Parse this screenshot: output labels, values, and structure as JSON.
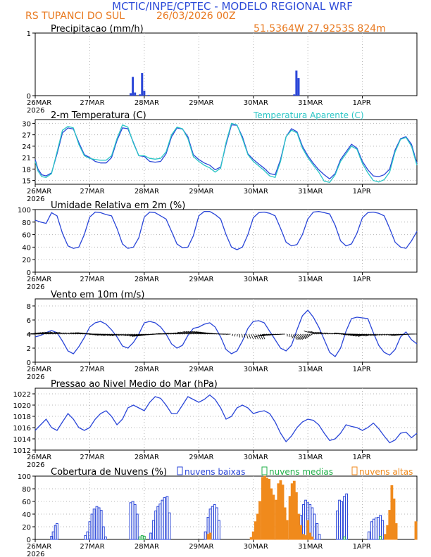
{
  "header": {
    "line1": "MCTIC/INPE/CPTEC - MODELO REGIONAL WRF",
    "location": "RS TUPANCI DO SUL",
    "run": "26/03/2026 00Z",
    "coords": "51.5364W 27.9253S 824m"
  },
  "colors": {
    "title_blue": "#2d4bd8",
    "header_orange": "#e8781e",
    "line_blue": "#2a46d8",
    "line_cyan": "#2ac6c6",
    "bar_orange": "#f08a1c",
    "bar_green": "#22b04a",
    "grid": "#b4b4b4"
  },
  "x_axis": {
    "labels": [
      "26MAR",
      "27MAR",
      "28MAR",
      "29MAR",
      "30MAR",
      "31MAR",
      "1APR"
    ],
    "year_label": "2026",
    "days_total": 7.0
  },
  "chart_data": [
    {
      "id": "precip",
      "type": "bar",
      "title": "Precipitacao (mm/h)",
      "ylim": [
        0,
        1
      ],
      "yticks": [
        0,
        1
      ],
      "x_days": [
        1.75,
        1.79,
        1.83,
        1.92,
        1.96,
        2.0,
        2.08,
        4.75,
        4.79,
        4.83
      ],
      "values": [
        0.04,
        0.3,
        0.05,
        0.02,
        0.36,
        0.08,
        0.01,
        0.02,
        0.4,
        0.28
      ]
    },
    {
      "id": "temp",
      "type": "line",
      "title": "2-m Temperatura (C)",
      "legend": "Temperatura Aparente (C)",
      "ylim": [
        14,
        31
      ],
      "yticks": [
        15,
        18,
        21,
        24,
        27,
        30
      ],
      "series": [
        {
          "name": "Temperatura (C)",
          "x": [
            0,
            0.05,
            0.12,
            0.2,
            0.3,
            0.4,
            0.5,
            0.6,
            0.7,
            0.8,
            0.9,
            1.0,
            1.1,
            1.2,
            1.3,
            1.4,
            1.5,
            1.6,
            1.7,
            1.8,
            1.9,
            2.0,
            2.1,
            2.2,
            2.3,
            2.4,
            2.5,
            2.6,
            2.7,
            2.8,
            2.9,
            3.0,
            3.1,
            3.2,
            3.3,
            3.4,
            3.5,
            3.6,
            3.7,
            3.8,
            3.9,
            4.0,
            4.1,
            4.2,
            4.3,
            4.4,
            4.5,
            4.6,
            4.7,
            4.8,
            4.9,
            5.0,
            5.1,
            5.2,
            5.3,
            5.4,
            5.5,
            5.6,
            5.7,
            5.8,
            5.9,
            6.0,
            6.1,
            6.2,
            6.3,
            6.4,
            6.5,
            6.6,
            6.7,
            6.8,
            6.9,
            7.0
          ],
          "y": [
            20.5,
            18,
            16.5,
            16.2,
            17,
            22,
            27.5,
            28.8,
            28.5,
            25,
            21.8,
            21,
            20,
            19.6,
            19.6,
            21,
            25.5,
            28.8,
            28.6,
            25,
            21.5,
            21.3,
            20,
            19.8,
            20,
            22,
            26.5,
            28.8,
            28.5,
            26.5,
            21.8,
            20.5,
            19.6,
            19,
            17.8,
            18.5,
            24.5,
            29.6,
            29.5,
            26.5,
            22,
            20.5,
            19.3,
            18.2,
            16.8,
            16.5,
            20.5,
            26.5,
            28.6,
            27.8,
            24,
            21.5,
            19.5,
            17.8,
            16.5,
            15.4,
            16.8,
            20.5,
            22.5,
            24.5,
            23.5,
            20,
            17.8,
            16.2,
            16,
            16.5,
            18,
            23,
            26,
            26.5,
            24.5,
            19.5
          ]
        },
        {
          "name": "Temperatura Aparente (C)",
          "x": [
            0,
            0.05,
            0.12,
            0.2,
            0.3,
            0.4,
            0.5,
            0.6,
            0.7,
            0.8,
            0.9,
            1.0,
            1.1,
            1.2,
            1.3,
            1.4,
            1.5,
            1.6,
            1.7,
            1.8,
            1.9,
            2.0,
            2.1,
            2.2,
            2.3,
            2.4,
            2.5,
            2.6,
            2.7,
            2.8,
            2.9,
            3.0,
            3.1,
            3.2,
            3.3,
            3.4,
            3.5,
            3.6,
            3.7,
            3.8,
            3.9,
            4.0,
            4.1,
            4.2,
            4.3,
            4.4,
            4.5,
            4.6,
            4.7,
            4.8,
            4.9,
            5.0,
            5.1,
            5.2,
            5.3,
            5.4,
            5.5,
            5.6,
            5.7,
            5.8,
            5.9,
            6.0,
            6.1,
            6.2,
            6.3,
            6.4,
            6.5,
            6.6,
            6.7,
            6.8,
            6.9,
            7.0
          ],
          "y": [
            20,
            17.5,
            16,
            15.8,
            16.8,
            22.5,
            28.2,
            29.2,
            28.8,
            24.5,
            21.5,
            20.8,
            20.5,
            20.3,
            20.3,
            21.5,
            26,
            29.6,
            29,
            24.8,
            21.5,
            21.5,
            20.8,
            20.6,
            20.8,
            22.5,
            27,
            29,
            28.6,
            26,
            21.3,
            20,
            19,
            18.3,
            17.2,
            18.2,
            25,
            30,
            29.6,
            26,
            21.8,
            20,
            18.8,
            17.6,
            16.2,
            15.8,
            20,
            26.5,
            28.2,
            27.5,
            23.5,
            21,
            19,
            17.2,
            14.8,
            14.5,
            16.5,
            20,
            22,
            24,
            23.2,
            19.5,
            17,
            15,
            14.6,
            15.2,
            17.2,
            22.5,
            25.8,
            26.3,
            24,
            19
          ]
        }
      ]
    },
    {
      "id": "rh",
      "type": "line",
      "title": "Umidade Relativa em 2m (%)",
      "ylim": [
        0,
        100
      ],
      "yticks": [
        0,
        20,
        40,
        60,
        80,
        100
      ],
      "series": [
        {
          "name": "Umidade Relativa (%)",
          "x": [
            0,
            0.1,
            0.2,
            0.3,
            0.4,
            0.5,
            0.6,
            0.7,
            0.8,
            0.9,
            1.0,
            1.1,
            1.2,
            1.3,
            1.4,
            1.5,
            1.6,
            1.7,
            1.8,
            1.9,
            2.0,
            2.1,
            2.2,
            2.3,
            2.4,
            2.5,
            2.6,
            2.7,
            2.8,
            2.9,
            3.0,
            3.1,
            3.2,
            3.3,
            3.4,
            3.5,
            3.6,
            3.7,
            3.8,
            3.9,
            4.0,
            4.1,
            4.2,
            4.3,
            4.4,
            4.5,
            4.6,
            4.7,
            4.8,
            4.9,
            5.0,
            5.1,
            5.2,
            5.3,
            5.4,
            5.5,
            5.6,
            5.7,
            5.8,
            5.9,
            6.0,
            6.1,
            6.2,
            6.3,
            6.4,
            6.5,
            6.6,
            6.7,
            6.8,
            6.9,
            7.0
          ],
          "y": [
            83,
            80,
            78,
            95,
            90,
            62,
            42,
            38,
            40,
            60,
            88,
            96,
            95,
            92,
            90,
            70,
            45,
            38,
            40,
            55,
            88,
            96,
            95,
            90,
            85,
            65,
            45,
            39,
            40,
            58,
            90,
            97,
            97,
            92,
            85,
            60,
            40,
            36,
            40,
            60,
            87,
            95,
            96,
            94,
            90,
            70,
            48,
            42,
            44,
            60,
            85,
            96,
            97,
            95,
            93,
            75,
            50,
            42,
            45,
            62,
            87,
            95,
            96,
            94,
            90,
            70,
            48,
            40,
            38,
            50,
            65
          ]
        }
      ]
    },
    {
      "id": "wind",
      "type": "line",
      "title": "Vento em 10m (m/s)",
      "ylim": [
        0,
        9
      ],
      "yticks": [
        0,
        2,
        4,
        6,
        8
      ],
      "series": [
        {
          "name": "Vento em 10m (m/s)",
          "x": [
            0,
            0.1,
            0.2,
            0.3,
            0.4,
            0.5,
            0.6,
            0.7,
            0.8,
            0.9,
            1.0,
            1.1,
            1.2,
            1.3,
            1.4,
            1.5,
            1.6,
            1.7,
            1.8,
            1.9,
            2.0,
            2.1,
            2.2,
            2.3,
            2.4,
            2.5,
            2.6,
            2.7,
            2.8,
            2.9,
            3.0,
            3.1,
            3.2,
            3.3,
            3.4,
            3.5,
            3.6,
            3.7,
            3.8,
            3.9,
            4.0,
            4.1,
            4.2,
            4.3,
            4.4,
            4.5,
            4.6,
            4.7,
            4.8,
            4.9,
            5.0,
            5.1,
            5.2,
            5.3,
            5.4,
            5.5,
            5.6,
            5.7,
            5.8,
            5.9,
            6.0,
            6.1,
            6.2,
            6.3,
            6.4,
            6.5,
            6.6,
            6.7,
            6.8,
            6.9,
            7.0
          ],
          "y": [
            3.6,
            3.8,
            4.2,
            4.5,
            4.2,
            3.0,
            1.6,
            1.2,
            2.2,
            3.5,
            5.0,
            5.6,
            5.8,
            5.4,
            4.6,
            3.6,
            2.3,
            2.0,
            2.8,
            4.0,
            5.6,
            5.8,
            5.6,
            5.0,
            4.0,
            2.6,
            2.0,
            2.4,
            3.8,
            4.8,
            5.0,
            5.4,
            5.6,
            5.0,
            3.6,
            1.8,
            1.2,
            1.6,
            3.0,
            4.8,
            5.8,
            5.9,
            5.6,
            4.4,
            3.2,
            2.0,
            1.6,
            2.4,
            4.6,
            6.6,
            7.4,
            6.4,
            5.0,
            3.2,
            1.4,
            0.8,
            2.0,
            4.4,
            6.2,
            6.4,
            6.3,
            6.2,
            4.2,
            2.4,
            1.4,
            1.0,
            1.8,
            3.6,
            4.3,
            3.2,
            2.6
          ]
        }
      ]
    },
    {
      "id": "pressure",
      "type": "line",
      "title": "Pressao ao Nivel Medio do Mar (hPa)",
      "ylim": [
        1012,
        1023
      ],
      "yticks": [
        1012,
        1014,
        1016,
        1018,
        1020,
        1022
      ],
      "series": [
        {
          "name": "Pressao (hPa)",
          "x": [
            0,
            0.1,
            0.2,
            0.3,
            0.4,
            0.5,
            0.6,
            0.7,
            0.8,
            0.9,
            1.0,
            1.1,
            1.2,
            1.3,
            1.4,
            1.5,
            1.6,
            1.7,
            1.8,
            1.9,
            2.0,
            2.1,
            2.2,
            2.3,
            2.4,
            2.5,
            2.6,
            2.7,
            2.8,
            2.9,
            3.0,
            3.1,
            3.2,
            3.3,
            3.4,
            3.5,
            3.6,
            3.7,
            3.8,
            3.9,
            4.0,
            4.1,
            4.2,
            4.3,
            4.4,
            4.5,
            4.6,
            4.7,
            4.8,
            4.9,
            5.0,
            5.1,
            5.2,
            5.3,
            5.4,
            5.5,
            5.6,
            5.7,
            5.8,
            5.9,
            6.0,
            6.1,
            6.2,
            6.3,
            6.4,
            6.5,
            6.6,
            6.7,
            6.8,
            6.9,
            7.0
          ],
          "y": [
            1015.5,
            1016.5,
            1017.5,
            1016,
            1015.5,
            1017,
            1018.5,
            1017.5,
            1016,
            1015.5,
            1016,
            1017.5,
            1018.5,
            1019,
            1018,
            1016.5,
            1017.5,
            1019.5,
            1020,
            1019.5,
            1019,
            1020.5,
            1021.5,
            1021.2,
            1020,
            1018.5,
            1018.5,
            1020,
            1021.5,
            1021,
            1020.5,
            1021,
            1021.8,
            1021,
            1019.5,
            1017.5,
            1018,
            1019.5,
            1020,
            1019.5,
            1018.5,
            1018.8,
            1019,
            1018.5,
            1017,
            1015,
            1013.5,
            1014.5,
            1016,
            1017,
            1017.5,
            1017.3,
            1016.5,
            1015,
            1013.7,
            1014,
            1015,
            1016.5,
            1016.2,
            1016,
            1015.5,
            1016,
            1016.8,
            1015.8,
            1014.5,
            1013.3,
            1013.8,
            1015,
            1015.2,
            1014.2,
            1015
          ]
        }
      ]
    },
    {
      "id": "clouds",
      "type": "bar",
      "title": "Cobertura de Nuvens (%)",
      "legend": [
        "nuvens baixas",
        "nuvens medias",
        "nuvens altas"
      ],
      "ylim": [
        0,
        100
      ],
      "yticks": [
        0,
        20,
        40,
        60,
        80,
        100
      ],
      "series": [
        {
          "name": "nuvens baixas",
          "x": [
            0.3,
            0.33,
            0.37,
            0.4,
            0.92,
            0.96,
            1.0,
            1.04,
            1.08,
            1.13,
            1.17,
            1.21,
            1.25,
            1.29,
            1.75,
            1.79,
            1.83,
            1.87,
            2.12,
            2.17,
            2.21,
            2.25,
            2.29,
            2.33,
            2.37,
            2.42,
            2.46,
            3.12,
            3.17,
            3.21,
            3.25,
            3.29,
            3.33,
            3.37,
            4.83,
            4.87,
            4.92,
            4.96,
            5.0,
            5.04,
            5.08,
            5.12,
            5.17,
            5.21,
            5.54,
            5.58,
            5.62,
            5.67,
            5.71,
            6.12,
            6.17,
            6.21,
            6.25,
            6.29,
            6.33,
            6.37
          ],
          "values": [
            5,
            12,
            22,
            25,
            6,
            12,
            28,
            40,
            48,
            52,
            50,
            46,
            20,
            4,
            58,
            60,
            55,
            40,
            10,
            30,
            45,
            52,
            56,
            62,
            66,
            68,
            42,
            12,
            35,
            48,
            52,
            55,
            50,
            30,
            12,
            38,
            55,
            62,
            58,
            55,
            50,
            40,
            25,
            8,
            45,
            62,
            60,
            68,
            72,
            12,
            28,
            32,
            34,
            35,
            38,
            30
          ]
        },
        {
          "name": "nuvens medias",
          "x": [
            1.92,
            1.96,
            2.0,
            5.67,
            6.33
          ],
          "values": [
            4,
            6,
            5,
            4,
            5
          ]
        },
        {
          "name": "nuvens altas",
          "x": [
            3.17,
            3.21,
            3.96,
            4.0,
            4.04,
            4.08,
            4.12,
            4.17,
            4.21,
            4.25,
            4.29,
            4.33,
            4.37,
            4.42,
            4.46,
            4.5,
            4.54,
            4.58,
            4.62,
            4.67,
            4.71,
            4.75,
            4.79,
            4.83,
            4.87,
            4.92,
            4.96,
            5.0,
            5.04,
            5.08,
            6.42,
            6.46,
            6.5,
            6.54,
            6.58,
            6.62,
            6.98
          ],
          "values": [
            8,
            10,
            3,
            12,
            28,
            40,
            60,
            98,
            100,
            97,
            95,
            80,
            70,
            62,
            88,
            93,
            86,
            50,
            30,
            68,
            88,
            92,
            74,
            40,
            22,
            8,
            6,
            30,
            10,
            4,
            8,
            22,
            46,
            85,
            64,
            25,
            28
          ]
        }
      ]
    }
  ]
}
